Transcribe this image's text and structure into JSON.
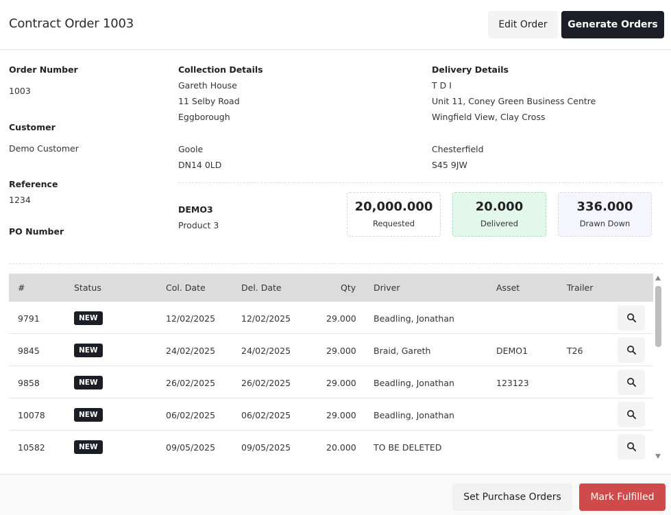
{
  "header": {
    "title": "Contract Order 1003",
    "edit_label": "Edit Order",
    "generate_label": "Generate Orders"
  },
  "order": {
    "order_number_label": "Order Number",
    "order_number": "1003",
    "customer_label": "Customer",
    "customer": "Demo Customer",
    "reference_label": "Reference",
    "reference": "1234",
    "po_number_label": "PO Number"
  },
  "collection": {
    "label": "Collection Details",
    "lines": [
      "Gareth House",
      "11 Selby Road",
      "Eggborough",
      "Goole",
      "DN14 0LD"
    ]
  },
  "delivery": {
    "label": "Delivery Details",
    "lines": [
      "T D I",
      "Unit 11, Coney Green Business Centre",
      "Wingfield View, Clay Cross",
      "Chesterfield",
      "S45 9JW"
    ]
  },
  "product": {
    "code": "DEMO3",
    "name": "Product 3"
  },
  "stats": {
    "requested": {
      "value": "20,000.000",
      "label": "Requested"
    },
    "delivered": {
      "value": "20.000",
      "label": "Delivered"
    },
    "drawn_down": {
      "value": "336.000",
      "label": "Drawn Down"
    }
  },
  "table": {
    "columns": [
      "#",
      "Status",
      "Col. Date",
      "Del. Date",
      "Qty",
      "Driver",
      "Asset",
      "Trailer"
    ],
    "rows": [
      {
        "id": "9791",
        "status": "NEW",
        "col_date": "12/02/2025",
        "del_date": "12/02/2025",
        "qty": "29.000",
        "driver": "Beadling, Jonathan",
        "asset": "",
        "trailer": ""
      },
      {
        "id": "9845",
        "status": "NEW",
        "col_date": "24/02/2025",
        "del_date": "24/02/2025",
        "qty": "29.000",
        "driver": "Braid, Gareth",
        "asset": "DEMO1",
        "trailer": "T26"
      },
      {
        "id": "9858",
        "status": "NEW",
        "col_date": "26/02/2025",
        "del_date": "26/02/2025",
        "qty": "29.000",
        "driver": "Beadling, Jonathan",
        "asset": "123123",
        "trailer": ""
      },
      {
        "id": "10078",
        "status": "NEW",
        "col_date": "06/02/2025",
        "del_date": "06/02/2025",
        "qty": "29.000",
        "driver": "Beadling, Jonathan",
        "asset": "",
        "trailer": ""
      },
      {
        "id": "10582",
        "status": "NEW",
        "col_date": "09/05/2025",
        "del_date": "09/05/2025",
        "qty": "20.000",
        "driver": "TO BE DELETED",
        "asset": "",
        "trailer": ""
      }
    ]
  },
  "footer": {
    "po_label": "Set Purchase Orders",
    "fulfil_label": "Mark Fulfilled"
  },
  "colors": {
    "primary_dark": "#1b1e26",
    "danger": "#cf4a4a",
    "delivered_bg": "#e3f8ea",
    "drawn_bg": "#f5f5fd"
  }
}
